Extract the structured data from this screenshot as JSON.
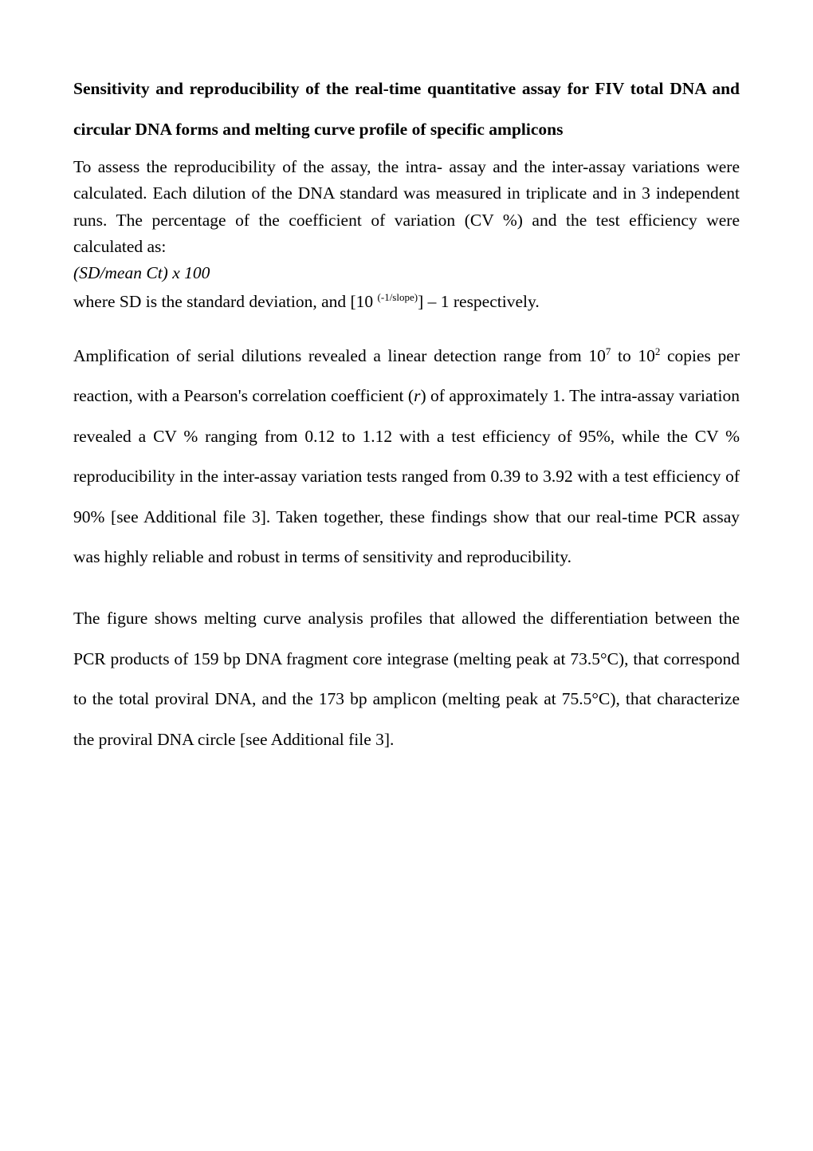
{
  "heading": "Sensitivity and reproducibility of the real-time quantitative assay for FIV total DNA and circular DNA forms and melting curve profile of specific amplicons",
  "para1": "To assess the reproducibility of the assay, the intra- assay and the inter-assay variations were calculated.  Each dilution of the DNA standard was measured in triplicate and in 3 independent runs. The percentage of the coefficient of variation (CV %) and the test efficiency were calculated as:",
  "formula_italic": "(SD/mean Ct) x 100",
  "formula_line_prefix": "where SD is the standard deviation, and [10 ",
  "formula_sup": "(-1/slope)",
  "formula_line_suffix": "] – 1 respectively.",
  "para2_a": "Amplification of serial dilutions revealed a linear detection range from 10",
  "para2_sup1": "7",
  "para2_b": " to 10",
  "para2_sup2": "2",
  "para2_c": " copies per reaction, with a Pearson's correlation coefficient (",
  "para2_r": "r",
  "para2_d": ") of approximately 1. The intra-assay variation revealed a CV % ranging from 0.12 to 1.12 with a test efficiency of 95%, while the CV % reproducibility in the inter-assay variation tests ranged from 0.39 to 3.92 with a test efficiency of 90% [see Additional file 3]. Taken together, these findings show that our real-time PCR assay was highly reliable and robust in terms of sensitivity and reproducibility.",
  "para3": "The figure shows melting curve analysis profiles that allowed the differentiation between the PCR products of 159 bp DNA fragment core integrase (melting peak at 73.5°C), that correspond to the total proviral DNA, and the 173 bp amplicon (melting peak at 75.5°C), that characterize the proviral DNA circle [see Additional file 3].",
  "colors": {
    "text": "#000000",
    "background": "#ffffff"
  },
  "typography": {
    "font_family": "Times New Roman",
    "body_fontsize_pt": 12,
    "heading_weight": "bold",
    "line_height_wide": 2.35,
    "line_height_tight": 1.55
  }
}
